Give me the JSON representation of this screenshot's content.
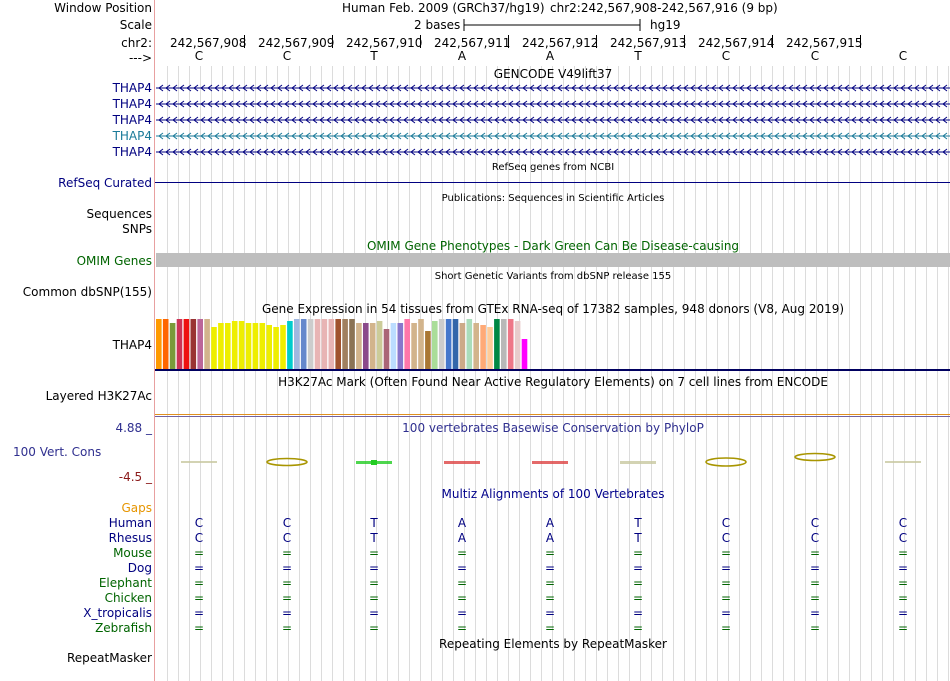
{
  "window_position": {
    "label": "Window Position",
    "assembly": "Human Feb. 2009 (GRCh37/hg19)",
    "range": "chr2:242,567,908-242,567,916 (9 bp)"
  },
  "scale": {
    "label": "Scale",
    "value": "2 bases",
    "assembly": "hg19"
  },
  "coords": {
    "label": "chr2:",
    "positions": [
      "242,567,908",
      "242,567,909",
      "242,567,910",
      "242,567,911",
      "242,567,912",
      "242,567,913",
      "242,567,914",
      "242,567,915"
    ]
  },
  "strand": {
    "label": "--->",
    "bases": [
      "C",
      "C",
      "T",
      "A",
      "A",
      "T",
      "C",
      "C",
      "C"
    ]
  },
  "gencode": {
    "title": "GENCODE V49lift37",
    "tracks": [
      "THAP4",
      "THAP4",
      "THAP4",
      "THAP4",
      "THAP4"
    ],
    "colors": [
      "#000080",
      "#000080",
      "#000080",
      "#1a7a99",
      "#000080"
    ]
  },
  "refseq": {
    "title": "RefSeq genes from NCBI",
    "label": "RefSeq Curated"
  },
  "publications": {
    "title": "Publications: Sequences in Scientific Articles",
    "labels": [
      "Sequences",
      "SNPs"
    ]
  },
  "omim": {
    "title": "OMIM Gene Phenotypes - Dark Green Can Be Disease-causing",
    "label": "OMIM Genes",
    "bar_color": "#bebebe"
  },
  "dbsnp": {
    "title": "Short Genetic Variants from dbSNP release 155",
    "label": "Common dbSNP(155)"
  },
  "gtex": {
    "title": "Gene Expression in 54 tissues from GTEx RNA-seq of 17382 samples, 948 donors (V8, Aug 2019)",
    "label": "THAP4",
    "bar_colors": [
      "#ff9900",
      "#ff6600",
      "#7a9a3a",
      "#cc3355",
      "#ee1111",
      "#993333",
      "#bb6699",
      "#d2b48c",
      "#eeee00",
      "#eeee00",
      "#eeee00",
      "#eeee00",
      "#eeee00",
      "#eeee00",
      "#eeee00",
      "#eeee00",
      "#eeee00",
      "#eeee00",
      "#eeee00",
      "#00cccc",
      "#a0b8e0",
      "#6688cc",
      "#cccccc",
      "#e8b4b4",
      "#e8b4b4",
      "#e8b4b4",
      "#a0522d",
      "#a08060",
      "#8b7355",
      "#d2b48c",
      "#8b4a8b",
      "#d2b48c",
      "#cccc99",
      "#aa6677",
      "#bbddff",
      "#8877cc",
      "#ff77aa",
      "#d2b48c",
      "#d2b48c",
      "#aa7733",
      "#aadd99",
      "#cccccc",
      "#4477cc",
      "#3366aa",
      "#ccaa88",
      "#aaddbb",
      "#d2b48c",
      "#ffaa77",
      "#ffcc99",
      "#008844",
      "#b8b8b8",
      "#ee7788",
      "#e8cccc",
      "#ff00ff"
    ],
    "bar_values": [
      50,
      50,
      46,
      50,
      50,
      50,
      50,
      50,
      42,
      46,
      46,
      48,
      48,
      46,
      46,
      46,
      44,
      42,
      44,
      48,
      50,
      50,
      50,
      50,
      50,
      50,
      50,
      50,
      50,
      46,
      46,
      46,
      48,
      40,
      46,
      46,
      50,
      46,
      50,
      38,
      48,
      50,
      50,
      50,
      46,
      50,
      46,
      44,
      42,
      50,
      50,
      50,
      48,
      30
    ]
  },
  "h3k27ac": {
    "title": "H3K27Ac Mark (Often Found Near Active Regulatory Elements) on 7 cell lines from ENCODE",
    "label": "Layered H3K27Ac"
  },
  "phylop": {
    "title": "100 vertebrates Basewise Conservation by PhyloP",
    "label": "100 Vert. Cons",
    "max": "4.88 _",
    "min": "-4.5 _",
    "colors": [
      "#c8c8a0",
      "#a89500",
      "#22cc22",
      "#dd4444",
      "#dd4444",
      "#c8c8a0",
      "#a89500",
      "#a89500",
      "#c8c8a0"
    ]
  },
  "multiz": {
    "title": "Multiz Alignments of 100 Vertebrates",
    "gaps_label": "Gaps",
    "species": [
      {
        "name": "Human",
        "color": "#000080",
        "bases": [
          "C",
          "C",
          "T",
          "A",
          "A",
          "T",
          "C",
          "C",
          "C"
        ]
      },
      {
        "name": "Rhesus",
        "color": "#000080",
        "bases": [
          "C",
          "C",
          "T",
          "A",
          "A",
          "T",
          "C",
          "C",
          "C"
        ]
      },
      {
        "name": "Mouse",
        "color": "#006400",
        "bases": [
          "=",
          "=",
          "=",
          "=",
          "=",
          "=",
          "=",
          "=",
          "="
        ]
      },
      {
        "name": "Dog",
        "color": "#000080",
        "bases": [
          "=",
          "=",
          "=",
          "=",
          "=",
          "=",
          "=",
          "=",
          "="
        ]
      },
      {
        "name": "Elephant",
        "color": "#006400",
        "bases": [
          "=",
          "=",
          "=",
          "=",
          "=",
          "=",
          "=",
          "=",
          "="
        ]
      },
      {
        "name": "Chicken",
        "color": "#006400",
        "bases": [
          "=",
          "=",
          "=",
          "=",
          "=",
          "=",
          "=",
          "=",
          "="
        ]
      },
      {
        "name": "X_tropicalis",
        "color": "#000080",
        "bases": [
          "=",
          "=",
          "=",
          "=",
          "=",
          "=",
          "=",
          "=",
          "="
        ]
      },
      {
        "name": "Zebrafish",
        "color": "#006400",
        "bases": [
          "=",
          "=",
          "=",
          "=",
          "=",
          "=",
          "=",
          "=",
          "="
        ]
      }
    ]
  },
  "repeatmasker": {
    "title": "Repeating Elements by RepeatMasker",
    "label": "RepeatMasker"
  }
}
